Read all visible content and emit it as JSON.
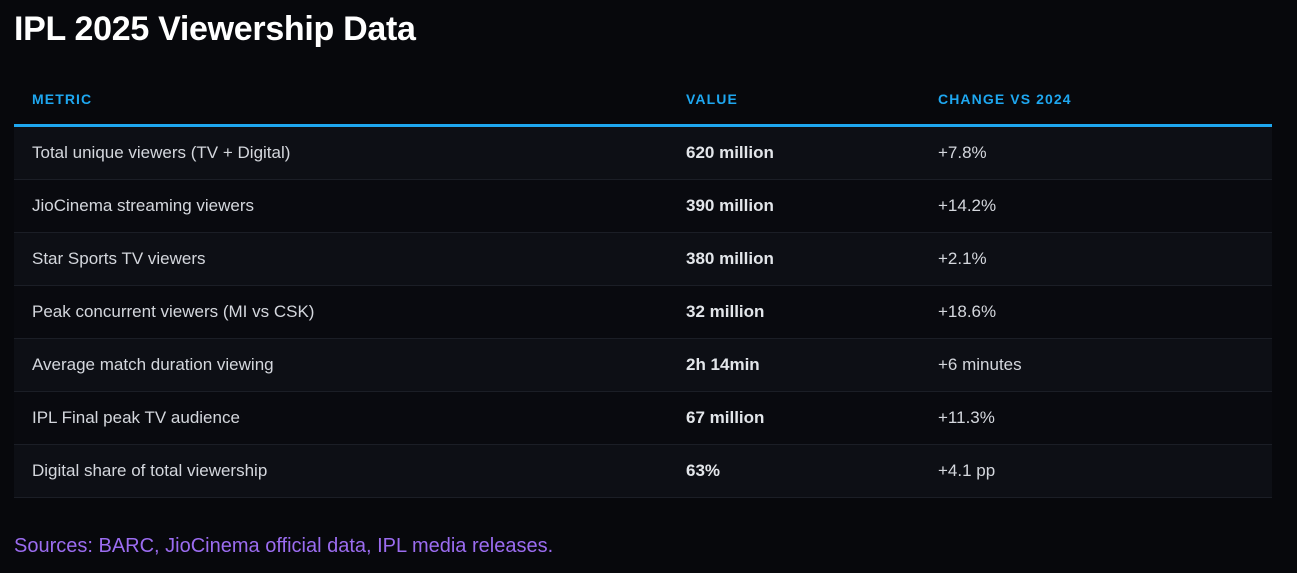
{
  "title": "IPL 2025 Viewership Data",
  "table": {
    "headers": [
      "METRIC",
      "VALUE",
      "CHANGE VS 2024"
    ],
    "rows": [
      {
        "metric": "Total unique viewers (TV + Digital)",
        "value": "620 million",
        "change": "+7.8%"
      },
      {
        "metric": "JioCinema streaming viewers",
        "value": "390 million",
        "change": "+14.2%"
      },
      {
        "metric": "Star Sports TV viewers",
        "value": "380 million",
        "change": "+2.1%"
      },
      {
        "metric": "Peak concurrent viewers (MI vs CSK)",
        "value": "32 million",
        "change": "+18.6%"
      },
      {
        "metric": "Average match duration viewing",
        "value": "2h 14min",
        "change": "+6 minutes"
      },
      {
        "metric": "IPL Final peak TV audience",
        "value": "67 million",
        "change": "+11.3%"
      },
      {
        "metric": "Digital share of total viewership",
        "value": "63%",
        "change": "+4.1 pp"
      }
    ]
  },
  "sources": "Sources: BARC, JioCinema official data, IPL media releases.",
  "colors": {
    "background": "#07080c",
    "header_accent": "#1ea7f0",
    "sources_text": "#9b6cf0",
    "title_text": "#ffffff"
  }
}
